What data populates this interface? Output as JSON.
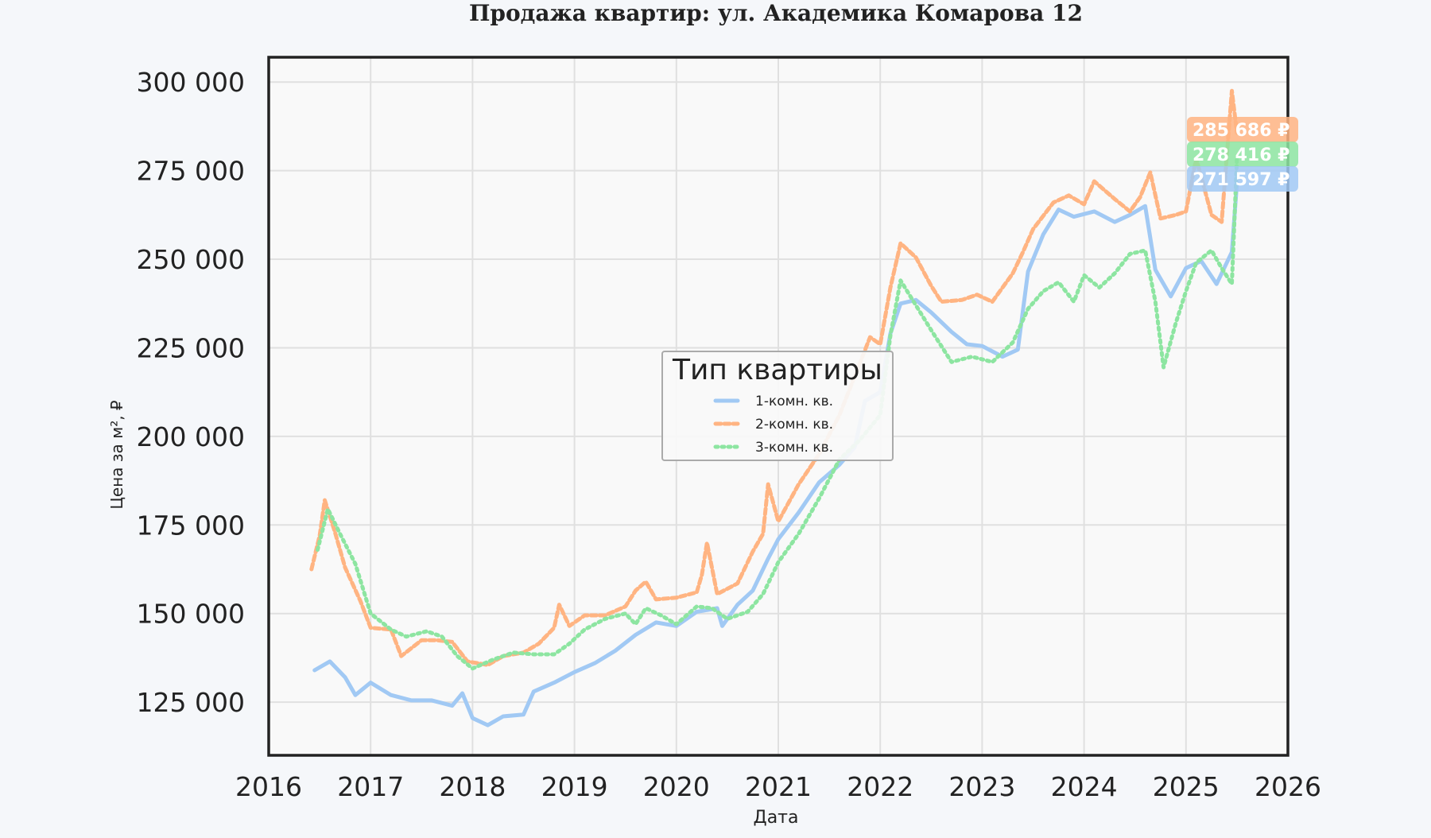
{
  "chart_data": {
    "type": "line",
    "title": "Продажа квартир: ул. Академика Комарова 12",
    "xlabel": "Дата",
    "ylabel": "Цена за м², ₽",
    "xlim": [
      2016,
      2026
    ],
    "ylim": [
      110000,
      307000
    ],
    "x_ticks": [
      "2016",
      "2017",
      "2018",
      "2019",
      "2020",
      "2021",
      "2022",
      "2023",
      "2024",
      "2025",
      "2026"
    ],
    "y_ticks": [
      "125 000",
      "150 000",
      "175 000",
      "200 000",
      "225 000",
      "250 000",
      "275 000",
      "300 000"
    ],
    "grid": true,
    "legend": {
      "title": "Тип квартиры",
      "placement": "center"
    },
    "series": [
      {
        "name": "1-комн. кв.",
        "color": "#a1c9f4",
        "dash": "solid",
        "last_value_label": "271 597 ₽",
        "points": [
          [
            2016.45,
            134000
          ],
          [
            2016.6,
            136500
          ],
          [
            2016.75,
            132000
          ],
          [
            2016.85,
            127000
          ],
          [
            2017.0,
            130500
          ],
          [
            2017.2,
            127000
          ],
          [
            2017.4,
            125500
          ],
          [
            2017.6,
            125500
          ],
          [
            2017.8,
            124000
          ],
          [
            2017.9,
            127500
          ],
          [
            2018.0,
            120500
          ],
          [
            2018.15,
            118500
          ],
          [
            2018.3,
            121000
          ],
          [
            2018.5,
            121500
          ],
          [
            2018.6,
            128000
          ],
          [
            2018.8,
            130500
          ],
          [
            2019.0,
            133500
          ],
          [
            2019.2,
            136000
          ],
          [
            2019.4,
            139500
          ],
          [
            2019.6,
            144000
          ],
          [
            2019.8,
            147500
          ],
          [
            2020.0,
            146500
          ],
          [
            2020.2,
            150500
          ],
          [
            2020.4,
            151500
          ],
          [
            2020.45,
            146500
          ],
          [
            2020.6,
            152500
          ],
          [
            2020.75,
            156500
          ],
          [
            2020.9,
            165500
          ],
          [
            2021.0,
            171000
          ],
          [
            2021.2,
            178500
          ],
          [
            2021.4,
            187000
          ],
          [
            2021.6,
            192000
          ],
          [
            2021.75,
            197000
          ],
          [
            2021.85,
            210000
          ],
          [
            2022.0,
            212500
          ],
          [
            2022.1,
            229000
          ],
          [
            2022.2,
            237500
          ],
          [
            2022.35,
            238500
          ],
          [
            2022.5,
            235000
          ],
          [
            2022.7,
            229500
          ],
          [
            2022.85,
            226000
          ],
          [
            2023.0,
            225500
          ],
          [
            2023.2,
            222500
          ],
          [
            2023.35,
            224500
          ],
          [
            2023.45,
            246500
          ],
          [
            2023.6,
            257000
          ],
          [
            2023.75,
            264000
          ],
          [
            2023.9,
            262000
          ],
          [
            2024.1,
            263500
          ],
          [
            2024.3,
            260500
          ],
          [
            2024.45,
            262500
          ],
          [
            2024.6,
            265000
          ],
          [
            2024.7,
            247000
          ],
          [
            2024.85,
            239500
          ],
          [
            2025.0,
            247500
          ],
          [
            2025.15,
            249500
          ],
          [
            2025.3,
            243000
          ],
          [
            2025.45,
            252000
          ],
          [
            2025.5,
            271597
          ]
        ]
      },
      {
        "name": "2-комн. кв.",
        "color": "#ffb482",
        "dash": "dashed",
        "last_value_label": "285 686 ₽",
        "points": [
          [
            2016.42,
            162500
          ],
          [
            2016.5,
            172000
          ],
          [
            2016.55,
            182000
          ],
          [
            2016.65,
            173000
          ],
          [
            2016.75,
            163000
          ],
          [
            2016.9,
            153500
          ],
          [
            2017.0,
            146000
          ],
          [
            2017.2,
            145500
          ],
          [
            2017.3,
            138000
          ],
          [
            2017.5,
            142500
          ],
          [
            2017.65,
            142500
          ],
          [
            2017.8,
            142000
          ],
          [
            2017.95,
            136500
          ],
          [
            2018.15,
            135500
          ],
          [
            2018.3,
            138000
          ],
          [
            2018.5,
            139000
          ],
          [
            2018.65,
            141500
          ],
          [
            2018.8,
            146000
          ],
          [
            2018.85,
            152500
          ],
          [
            2018.95,
            146500
          ],
          [
            2019.1,
            149500
          ],
          [
            2019.3,
            149500
          ],
          [
            2019.5,
            152000
          ],
          [
            2019.6,
            156500
          ],
          [
            2019.7,
            159000
          ],
          [
            2019.8,
            154000
          ],
          [
            2020.0,
            154500
          ],
          [
            2020.2,
            156000
          ],
          [
            2020.25,
            161000
          ],
          [
            2020.3,
            170000
          ],
          [
            2020.4,
            155500
          ],
          [
            2020.6,
            158500
          ],
          [
            2020.75,
            167500
          ],
          [
            2020.85,
            172500
          ],
          [
            2020.9,
            186500
          ],
          [
            2021.0,
            176000
          ],
          [
            2021.2,
            186500
          ],
          [
            2021.4,
            195000
          ],
          [
            2021.6,
            206000
          ],
          [
            2021.75,
            217000
          ],
          [
            2021.9,
            228000
          ],
          [
            2022.0,
            226000
          ],
          [
            2022.1,
            242000
          ],
          [
            2022.2,
            254500
          ],
          [
            2022.35,
            250500
          ],
          [
            2022.5,
            242500
          ],
          [
            2022.6,
            238000
          ],
          [
            2022.8,
            238500
          ],
          [
            2022.95,
            240000
          ],
          [
            2023.1,
            238000
          ],
          [
            2023.3,
            246000
          ],
          [
            2023.4,
            252000
          ],
          [
            2023.5,
            258500
          ],
          [
            2023.7,
            266000
          ],
          [
            2023.85,
            268000
          ],
          [
            2024.0,
            265500
          ],
          [
            2024.1,
            272000
          ],
          [
            2024.3,
            267000
          ],
          [
            2024.45,
            263500
          ],
          [
            2024.55,
            267500
          ],
          [
            2024.65,
            274500
          ],
          [
            2024.75,
            261500
          ],
          [
            2024.9,
            262500
          ],
          [
            2025.0,
            263500
          ],
          [
            2025.1,
            278500
          ],
          [
            2025.25,
            262500
          ],
          [
            2025.35,
            260500
          ],
          [
            2025.45,
            297500
          ],
          [
            2025.5,
            285686
          ]
        ]
      },
      {
        "name": "3-комн. кв.",
        "color": "#8de5a1",
        "dash": "dotted",
        "last_value_label": "278 416 ₽",
        "points": [
          [
            2016.48,
            168000
          ],
          [
            2016.58,
            179500
          ],
          [
            2016.7,
            172500
          ],
          [
            2016.85,
            164000
          ],
          [
            2017.0,
            150000
          ],
          [
            2017.2,
            145500
          ],
          [
            2017.35,
            143500
          ],
          [
            2017.55,
            145000
          ],
          [
            2017.7,
            143500
          ],
          [
            2017.85,
            138000
          ],
          [
            2018.0,
            134500
          ],
          [
            2018.2,
            137000
          ],
          [
            2018.4,
            139000
          ],
          [
            2018.6,
            138500
          ],
          [
            2018.8,
            138500
          ],
          [
            2018.95,
            141500
          ],
          [
            2019.1,
            145500
          ],
          [
            2019.3,
            148500
          ],
          [
            2019.5,
            150000
          ],
          [
            2019.6,
            147000
          ],
          [
            2019.7,
            151500
          ],
          [
            2019.85,
            149500
          ],
          [
            2020.0,
            147000
          ],
          [
            2020.2,
            152000
          ],
          [
            2020.35,
            151500
          ],
          [
            2020.5,
            148500
          ],
          [
            2020.7,
            150500
          ],
          [
            2020.85,
            155500
          ],
          [
            2021.0,
            164500
          ],
          [
            2021.2,
            172500
          ],
          [
            2021.4,
            182500
          ],
          [
            2021.6,
            193500
          ],
          [
            2021.8,
            199000
          ],
          [
            2022.0,
            206000
          ],
          [
            2022.1,
            228500
          ],
          [
            2022.2,
            244000
          ],
          [
            2022.35,
            237000
          ],
          [
            2022.5,
            230000
          ],
          [
            2022.7,
            221000
          ],
          [
            2022.9,
            222500
          ],
          [
            2023.1,
            221000
          ],
          [
            2023.3,
            226500
          ],
          [
            2023.45,
            236000
          ],
          [
            2023.6,
            241000
          ],
          [
            2023.75,
            243500
          ],
          [
            2023.9,
            238000
          ],
          [
            2024.0,
            245500
          ],
          [
            2024.15,
            242000
          ],
          [
            2024.3,
            246000
          ],
          [
            2024.45,
            251500
          ],
          [
            2024.6,
            252500
          ],
          [
            2024.7,
            238000
          ],
          [
            2024.78,
            219500
          ],
          [
            2024.9,
            232000
          ],
          [
            2025.0,
            241000
          ],
          [
            2025.1,
            249000
          ],
          [
            2025.25,
            252500
          ],
          [
            2025.35,
            247500
          ],
          [
            2025.45,
            243000
          ],
          [
            2025.5,
            278416
          ]
        ]
      }
    ]
  }
}
